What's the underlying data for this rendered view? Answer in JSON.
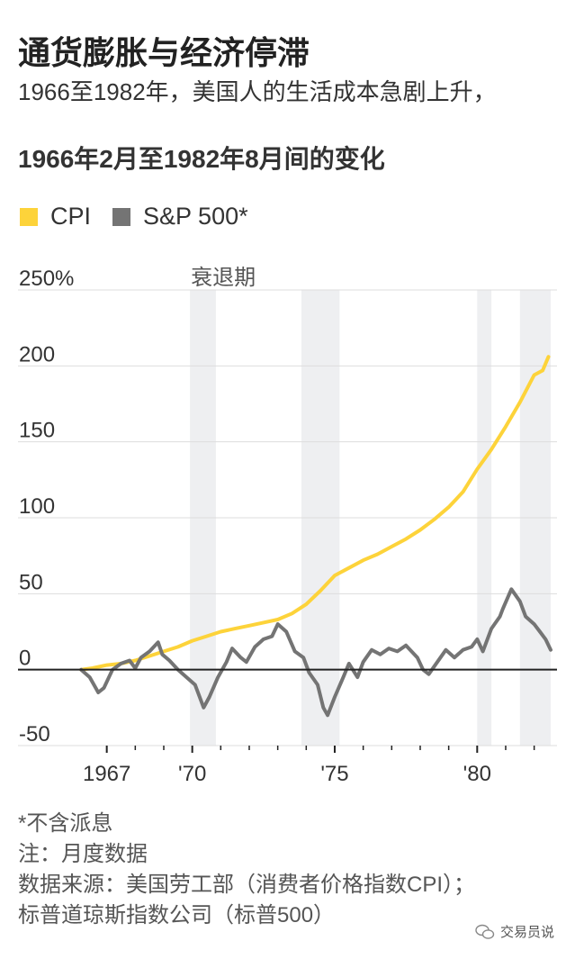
{
  "title": "通货膨胀与经济停滞",
  "subtitle": "1966至1982年，美国人的生活成本急剧上升，",
  "chart_data": {
    "type": "line",
    "title": "1966年2月至1982年8月间的变化",
    "ylabel": "",
    "xlabel": "",
    "xlim": [
      1966.0,
      1982.58
    ],
    "ylim": [
      -50,
      250
    ],
    "yticks": [
      -50,
      0,
      50,
      100,
      150,
      200,
      250
    ],
    "ytick_labels": [
      "-50",
      "0",
      "50",
      "100",
      "150",
      "200",
      "250%"
    ],
    "xticks": [
      1967,
      1970,
      1975,
      1980
    ],
    "xtick_labels": [
      "1967",
      "'70",
      "'75",
      "'80"
    ],
    "minor_xticks": [
      1968,
      1969,
      1971,
      1972,
      1973,
      1974,
      1976,
      1977,
      1978,
      1979,
      1981,
      1982
    ],
    "recession_label": "衰退期",
    "recessions": [
      [
        1969.92,
        1970.83
      ],
      [
        1973.83,
        1975.17
      ],
      [
        1980.0,
        1980.5
      ],
      [
        1981.5,
        1982.58
      ]
    ],
    "series": [
      {
        "name": "CPI",
        "color": "#fdd33a",
        "x": [
          1966.1,
          1966.5,
          1967.0,
          1967.5,
          1968.0,
          1968.5,
          1969.0,
          1969.5,
          1970.0,
          1970.5,
          1971.0,
          1971.5,
          1972.0,
          1972.5,
          1973.0,
          1973.5,
          1974.0,
          1974.5,
          1975.0,
          1975.5,
          1976.0,
          1976.5,
          1977.0,
          1977.5,
          1978.0,
          1978.5,
          1979.0,
          1979.5,
          1980.0,
          1980.5,
          1981.0,
          1981.5,
          1982.0,
          1982.3,
          1982.5
        ],
        "values": [
          0,
          1,
          3,
          4,
          6,
          9,
          12,
          15,
          19,
          22,
          25,
          27,
          29,
          31,
          33,
          37,
          43,
          52,
          62,
          67,
          72,
          76,
          81,
          86,
          92,
          99,
          107,
          117,
          132,
          145,
          160,
          176,
          194,
          197,
          206
        ]
      },
      {
        "name": "S&P 500*",
        "color": "#747474",
        "x": [
          1966.1,
          1966.4,
          1966.7,
          1966.9,
          1967.2,
          1967.5,
          1967.8,
          1968.0,
          1968.2,
          1968.5,
          1968.8,
          1968.95,
          1969.2,
          1969.5,
          1969.8,
          1970.1,
          1970.4,
          1970.6,
          1970.9,
          1971.2,
          1971.4,
          1971.7,
          1971.9,
          1972.2,
          1972.5,
          1972.8,
          1973.0,
          1973.3,
          1973.6,
          1973.9,
          1974.1,
          1974.4,
          1974.6,
          1974.75,
          1975.0,
          1975.3,
          1975.5,
          1975.8,
          1976.0,
          1976.3,
          1976.6,
          1976.9,
          1977.2,
          1977.5,
          1977.9,
          1978.1,
          1978.3,
          1978.6,
          1978.9,
          1979.2,
          1979.5,
          1979.8,
          1980.0,
          1980.2,
          1980.5,
          1980.8,
          1980.9,
          1981.2,
          1981.5,
          1981.7,
          1982.0,
          1982.2,
          1982.4,
          1982.58
        ],
        "values": [
          0,
          -5,
          -15,
          -12,
          0,
          4,
          6,
          1,
          8,
          12,
          18,
          10,
          6,
          0,
          -5,
          -10,
          -25,
          -18,
          -5,
          5,
          14,
          8,
          5,
          15,
          20,
          22,
          30,
          25,
          12,
          8,
          -2,
          -10,
          -25,
          -30,
          -18,
          -5,
          4,
          -5,
          5,
          13,
          10,
          14,
          12,
          16,
          8,
          0,
          -3,
          5,
          13,
          8,
          13,
          15,
          20,
          12,
          27,
          35,
          40,
          53,
          45,
          35,
          30,
          25,
          20,
          13
        ]
      }
    ]
  },
  "notes": [
    "*不含派息",
    "注：月度数据",
    "数据来源：美国劳工部（消费者价格指数CPI）；",
    "标普道琼斯指数公司（标普500）"
  ],
  "watermark": "交易员说"
}
